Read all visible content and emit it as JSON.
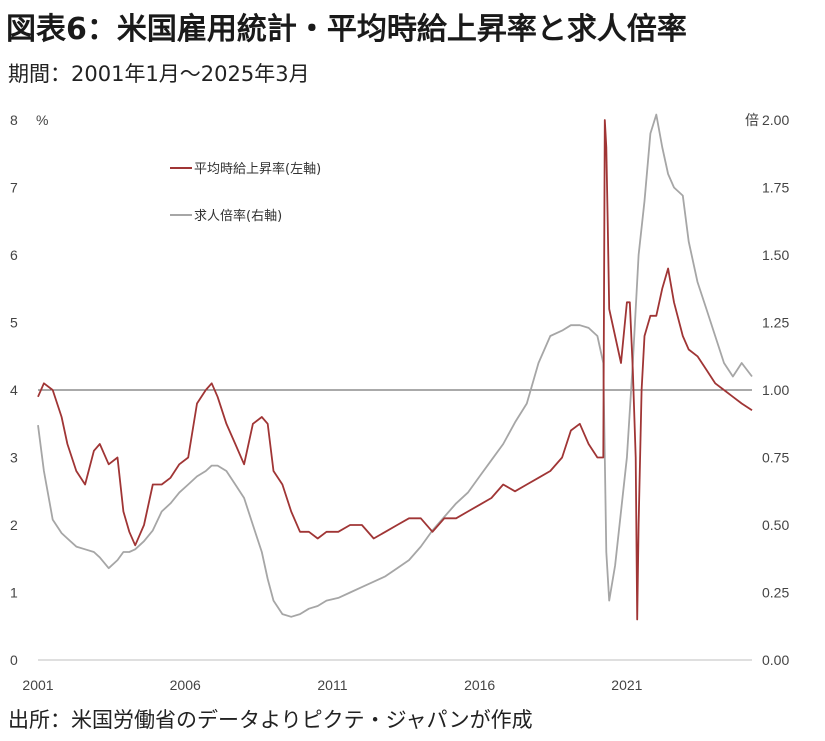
{
  "header": {
    "title": "図表6：米国雇用統計・平均時給上昇率と求人倍率",
    "subtitle": "期間：2001年1月～2025年3月"
  },
  "footer": {
    "source": "出所：米国労働省のデータよりピクテ・ジャパンが作成"
  },
  "colors": {
    "wage": "#a03535",
    "openings": "#a6a6a6",
    "reference_line": "#555555",
    "axis": "#bfbfbf"
  },
  "chart_data": {
    "type": "line",
    "title": "",
    "xlabel": "",
    "x_ticks": [
      "2001",
      "2006",
      "2011",
      "2016",
      "2021"
    ],
    "x_range": [
      2001.0,
      2025.25
    ],
    "left_axis": {
      "unit": "%",
      "ylim": [
        0,
        8
      ],
      "ticks": [
        "0",
        "1",
        "2",
        "3",
        "4",
        "5",
        "6",
        "7",
        "8"
      ]
    },
    "right_axis": {
      "unit": "倍",
      "ylim": [
        0,
        2
      ],
      "ticks": [
        "0.00",
        "0.25",
        "0.50",
        "0.75",
        "1.00",
        "1.25",
        "1.50",
        "1.75",
        "2.00"
      ]
    },
    "reference_line": {
      "axis": "right",
      "value": 1.0
    },
    "legend_position": "top-left",
    "series": [
      {
        "name": "平均時給上昇率(左軸)",
        "axis": "left",
        "x": [
          2001.0,
          2001.2,
          2001.5,
          2001.8,
          2002.0,
          2002.3,
          2002.6,
          2002.9,
          2003.1,
          2003.4,
          2003.7,
          2003.9,
          2004.1,
          2004.3,
          2004.6,
          2004.9,
          2005.2,
          2005.5,
          2005.8,
          2006.1,
          2006.4,
          2006.7,
          2006.9,
          2007.1,
          2007.4,
          2007.7,
          2008.0,
          2008.3,
          2008.6,
          2008.8,
          2009.0,
          2009.3,
          2009.6,
          2009.9,
          2010.2,
          2010.5,
          2010.8,
          2011.2,
          2011.6,
          2012.0,
          2012.4,
          2012.8,
          2013.2,
          2013.6,
          2014.0,
          2014.4,
          2014.8,
          2015.2,
          2015.6,
          2016.0,
          2016.4,
          2016.8,
          2017.2,
          2017.6,
          2018.0,
          2018.4,
          2018.8,
          2019.1,
          2019.4,
          2019.7,
          2020.0,
          2020.2,
          2020.25,
          2020.3,
          2020.35,
          2020.4,
          2020.6,
          2020.8,
          2021.0,
          2021.1,
          2021.2,
          2021.3,
          2021.35,
          2021.4,
          2021.5,
          2021.6,
          2021.8,
          2022.0,
          2022.2,
          2022.4,
          2022.6,
          2022.9,
          2023.1,
          2023.4,
          2023.7,
          2024.0,
          2024.3,
          2024.6,
          2024.9,
          2025.25
        ],
        "values": [
          3.9,
          4.1,
          4.0,
          3.6,
          3.2,
          2.8,
          2.6,
          3.1,
          3.2,
          2.9,
          3.0,
          2.2,
          1.9,
          1.7,
          2.0,
          2.6,
          2.6,
          2.7,
          2.9,
          3.0,
          3.8,
          4.0,
          4.1,
          3.9,
          3.5,
          3.2,
          2.9,
          3.5,
          3.6,
          3.5,
          2.8,
          2.6,
          2.2,
          1.9,
          1.9,
          1.8,
          1.9,
          1.9,
          2.0,
          2.0,
          1.8,
          1.9,
          2.0,
          2.1,
          2.1,
          1.9,
          2.1,
          2.1,
          2.2,
          2.3,
          2.4,
          2.6,
          2.5,
          2.6,
          2.7,
          2.8,
          3.0,
          3.4,
          3.5,
          3.2,
          3.0,
          3.0,
          8.0,
          7.6,
          6.5,
          5.2,
          4.8,
          4.4,
          5.3,
          5.3,
          4.3,
          3.0,
          0.6,
          2.0,
          4.0,
          4.8,
          5.1,
          5.1,
          5.5,
          5.8,
          5.3,
          4.8,
          4.6,
          4.5,
          4.3,
          4.1,
          4.0,
          3.9,
          3.8,
          3.7
        ]
      },
      {
        "name": "求人倍率(右軸)",
        "axis": "right",
        "x": [
          2001.0,
          2001.2,
          2001.5,
          2001.8,
          2002.0,
          2002.3,
          2002.6,
          2002.9,
          2003.1,
          2003.4,
          2003.7,
          2003.9,
          2004.1,
          2004.3,
          2004.6,
          2004.9,
          2005.2,
          2005.5,
          2005.8,
          2006.1,
          2006.4,
          2006.7,
          2006.9,
          2007.1,
          2007.4,
          2007.7,
          2008.0,
          2008.3,
          2008.6,
          2008.8,
          2009.0,
          2009.3,
          2009.6,
          2009.9,
          2010.2,
          2010.5,
          2010.8,
          2011.2,
          2011.6,
          2012.0,
          2012.4,
          2012.8,
          2013.2,
          2013.6,
          2014.0,
          2014.4,
          2014.8,
          2015.2,
          2015.6,
          2016.0,
          2016.4,
          2016.8,
          2017.2,
          2017.6,
          2018.0,
          2018.4,
          2018.8,
          2019.1,
          2019.4,
          2019.7,
          2020.0,
          2020.2,
          2020.3,
          2020.4,
          2020.6,
          2020.8,
          2021.0,
          2021.2,
          2021.4,
          2021.6,
          2021.8,
          2022.0,
          2022.2,
          2022.4,
          2022.6,
          2022.9,
          2023.1,
          2023.4,
          2023.7,
          2024.0,
          2024.3,
          2024.6,
          2024.9,
          2025.25
        ],
        "values": [
          0.87,
          0.7,
          0.52,
          0.47,
          0.45,
          0.42,
          0.41,
          0.4,
          0.38,
          0.34,
          0.37,
          0.4,
          0.4,
          0.41,
          0.44,
          0.48,
          0.55,
          0.58,
          0.62,
          0.65,
          0.68,
          0.7,
          0.72,
          0.72,
          0.7,
          0.65,
          0.6,
          0.5,
          0.4,
          0.3,
          0.22,
          0.17,
          0.16,
          0.17,
          0.19,
          0.2,
          0.22,
          0.23,
          0.25,
          0.27,
          0.29,
          0.31,
          0.34,
          0.37,
          0.42,
          0.48,
          0.53,
          0.58,
          0.62,
          0.68,
          0.74,
          0.8,
          0.88,
          0.95,
          1.1,
          1.2,
          1.22,
          1.24,
          1.24,
          1.23,
          1.2,
          1.1,
          0.4,
          0.22,
          0.35,
          0.55,
          0.75,
          1.1,
          1.5,
          1.7,
          1.95,
          2.02,
          1.9,
          1.8,
          1.75,
          1.72,
          1.55,
          1.4,
          1.3,
          1.2,
          1.1,
          1.05,
          1.1,
          1.05
        ]
      }
    ]
  }
}
